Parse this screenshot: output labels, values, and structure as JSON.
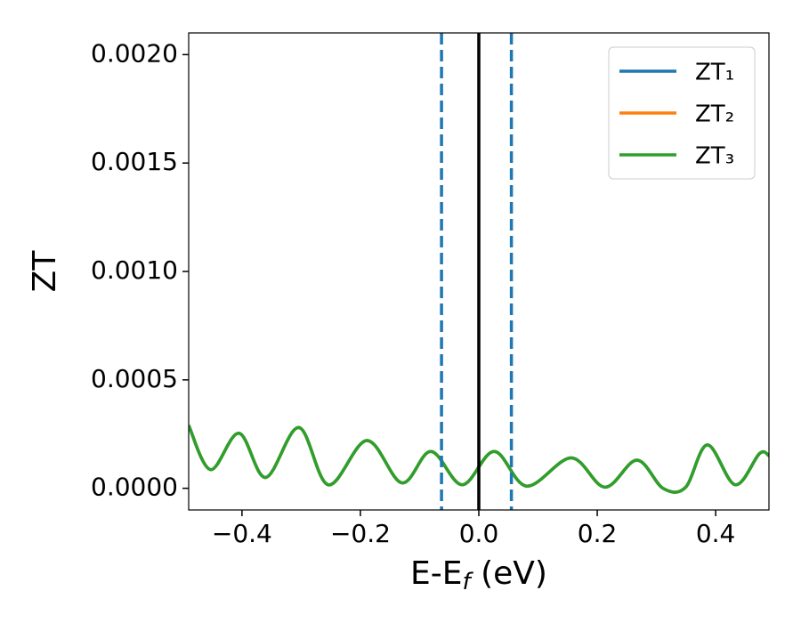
{
  "chart_data": {
    "type": "line",
    "xlabel": [
      "E-E",
      "f",
      " (eV)"
    ],
    "ylabel": "ZT",
    "xlim": [
      -0.49,
      0.49
    ],
    "ylim": [
      -0.0001,
      0.0021
    ],
    "xticks": [
      {
        "value": -0.4,
        "label": "−0.4"
      },
      {
        "value": -0.2,
        "label": "−0.2"
      },
      {
        "value": 0,
        "label": "0.0"
      },
      {
        "value": 0.2,
        "label": "0.2"
      },
      {
        "value": 0.4,
        "label": "0.4"
      }
    ],
    "yticks": [
      {
        "value": 0,
        "label": "0.0000"
      },
      {
        "value": 0.0005,
        "label": "0.0005"
      },
      {
        "value": 0.001,
        "label": "0.0010"
      },
      {
        "value": 0.0015,
        "label": "0.0015"
      },
      {
        "value": 0.002,
        "label": "0.0020"
      }
    ],
    "x": [
      -0.49,
      -0.453,
      -0.405,
      -0.36,
      -0.304,
      -0.254,
      -0.189,
      -0.13,
      -0.081,
      -0.028,
      0.026,
      0.081,
      0.156,
      0.213,
      0.267,
      0.311,
      0.349,
      0.386,
      0.433,
      0.474,
      0.49
    ],
    "series": [
      {
        "name": "ZT₁",
        "color": "#1f77b4",
        "values": [
          0.00029,
          8.6e-05,
          0.000254,
          5e-05,
          0.00028,
          1.6e-05,
          0.00022,
          2.5e-05,
          0.00017,
          1.6e-05,
          0.00017,
          1e-05,
          0.00014,
          5e-06,
          0.00013,
          0,
          4e-06,
          0.0002,
          1.6e-05,
          0.00016,
          0.00015
        ]
      },
      {
        "name": "ZT₂",
        "color": "#ff7f0e",
        "values": [
          0.00029,
          8.6e-05,
          0.000254,
          5e-05,
          0.00028,
          1.6e-05,
          0.00022,
          2.5e-05,
          0.00017,
          1.6e-05,
          0.00017,
          1e-05,
          0.00014,
          5e-06,
          0.00013,
          0,
          4e-06,
          0.0002,
          1.6e-05,
          0.00016,
          0.00015
        ]
      },
      {
        "name": "ZT₃",
        "color": "#2ca02c",
        "values": [
          0.00029,
          8.6e-05,
          0.000254,
          5e-05,
          0.00028,
          1.6e-05,
          0.00022,
          2.5e-05,
          0.00017,
          1.6e-05,
          0.00017,
          1e-05,
          0.00014,
          5e-06,
          0.00013,
          0,
          4e-06,
          0.0002,
          1.6e-05,
          0.00016,
          0.00015
        ]
      }
    ],
    "vlines": [
      {
        "x": -0.063,
        "color": "#1f77b4",
        "style": "dashed"
      },
      {
        "x": 0,
        "color": "#000000",
        "style": "solid"
      },
      {
        "x": 0.055,
        "color": "#1f77b4",
        "style": "dashed"
      }
    ],
    "legend": "upper right"
  }
}
